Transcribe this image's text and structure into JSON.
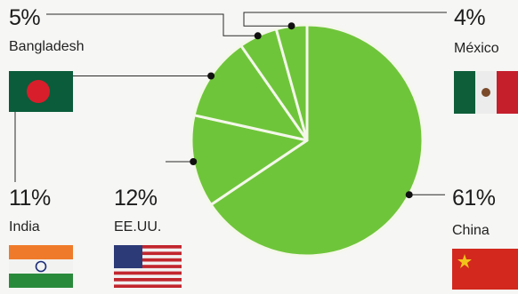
{
  "colors": {
    "slice": "#6fc53a",
    "slice_edge": "#f4f7ea",
    "leader": "#2a2a2a"
  },
  "chart_data": {
    "type": "pie",
    "labels": [
      "China",
      "EE.UU.",
      "India",
      "Bangladesh",
      "México"
    ],
    "values": [
      61,
      12,
      11,
      5,
      4
    ],
    "value_labels": [
      "61%",
      "12%",
      "11%",
      "5%",
      "4%"
    ],
    "legend": "none",
    "annotations": "flags next to each country label"
  },
  "flags": [
    {
      "country": "Bangladesh",
      "icon": "bangladesh-flag-icon"
    },
    {
      "country": "México",
      "icon": "mexico-flag-icon"
    },
    {
      "country": "India",
      "icon": "india-flag-icon"
    },
    {
      "country": "EE.UU.",
      "icon": "usa-flag-icon"
    },
    {
      "country": "China",
      "icon": "china-flag-icon"
    }
  ]
}
